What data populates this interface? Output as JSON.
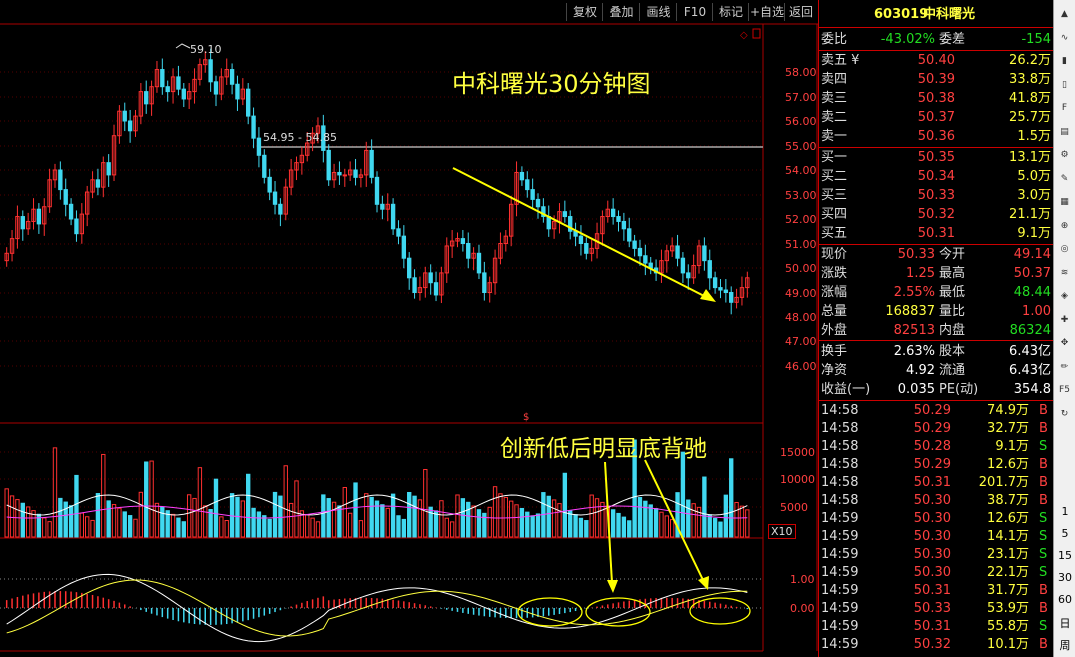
{
  "toolbar": {
    "buttons": [
      "复权",
      "叠加",
      "画线",
      "F10",
      "标记",
      "+自选",
      "返回"
    ]
  },
  "chart": {
    "title": "中科曙光30分钟图",
    "annotation": "创新低后明显底背驰",
    "high_label": "59.10",
    "range_label": "54.95 - 54.85",
    "price_ticks": [
      "58.00",
      "57.00",
      "56.00",
      "55.00",
      "54.00",
      "53.00",
      "52.00",
      "51.00",
      "50.00",
      "49.00",
      "48.00",
      "47.00",
      "46.00"
    ],
    "volume_ticks": [
      "15000",
      "10000",
      "5000"
    ],
    "volume_unit": "X10",
    "macd_ticks": [
      "1.00",
      "0.00"
    ],
    "colors": {
      "up": "#ff3030",
      "down": "#40d8f0",
      "trend": "#ffff00",
      "level": "#aaaaaa"
    }
  },
  "quote": {
    "code": "603019",
    "name": "中科曙光",
    "webi_label": "委比",
    "webi_value": "-43.02%",
    "weicha_label": "委差",
    "weicha_value": "-154",
    "asks": [
      {
        "label": "卖五 ¥",
        "price": "50.40",
        "vol": "26.2万"
      },
      {
        "label": "卖四",
        "price": "50.39",
        "vol": "33.8万"
      },
      {
        "label": "卖三",
        "price": "50.38",
        "vol": "41.8万"
      },
      {
        "label": "卖二",
        "price": "50.37",
        "vol": "25.7万"
      },
      {
        "label": "卖一",
        "price": "50.36",
        "vol": "1.5万"
      }
    ],
    "bids": [
      {
        "label": "买一",
        "price": "50.35",
        "vol": "13.1万"
      },
      {
        "label": "买二",
        "price": "50.34",
        "vol": "5.0万"
      },
      {
        "label": "买三",
        "price": "50.33",
        "vol": "3.0万"
      },
      {
        "label": "买四",
        "price": "50.32",
        "vol": "21.1万"
      },
      {
        "label": "买五",
        "price": "50.31",
        "vol": "9.1万"
      }
    ],
    "stats": [
      {
        "l1": "现价",
        "v1": "50.33",
        "c1": "red",
        "l2": "今开",
        "v2": "49.14",
        "c2": "red"
      },
      {
        "l1": "涨跌",
        "v1": "1.25",
        "c1": "red",
        "l2": "最高",
        "v2": "50.37",
        "c2": "red"
      },
      {
        "l1": "涨幅",
        "v1": "2.55%",
        "c1": "red",
        "l2": "最低",
        "v2": "48.44",
        "c2": "green"
      },
      {
        "l1": "总量",
        "v1": "168837",
        "c1": "yellow",
        "l2": "量比",
        "v2": "1.00",
        "c2": "red"
      },
      {
        "l1": "外盘",
        "v1": "82513",
        "c1": "red",
        "l2": "内盘",
        "v2": "86324",
        "c2": "green"
      }
    ],
    "fundamentals": [
      {
        "l1": "换手",
        "v1": "2.63%",
        "l2": "股本",
        "v2": "6.43亿"
      },
      {
        "l1": "净资",
        "v1": "4.92",
        "l2": "流通",
        "v2": "6.43亿"
      },
      {
        "l1": "收益(一)",
        "v1": "0.035",
        "l2": "PE(动)",
        "v2": "354.8"
      }
    ],
    "trades": [
      {
        "t": "14:58",
        "p": "50.29",
        "v": "74.9万",
        "s": "B"
      },
      {
        "t": "14:58",
        "p": "50.29",
        "v": "32.7万",
        "s": "B"
      },
      {
        "t": "14:58",
        "p": "50.28",
        "v": "9.1万",
        "s": "S"
      },
      {
        "t": "14:58",
        "p": "50.29",
        "v": "12.6万",
        "s": "B"
      },
      {
        "t": "14:58",
        "p": "50.31",
        "v": "201.7万",
        "s": "B"
      },
      {
        "t": "14:58",
        "p": "50.30",
        "v": "38.7万",
        "s": "B"
      },
      {
        "t": "14:59",
        "p": "50.30",
        "v": "12.6万",
        "s": "S"
      },
      {
        "t": "14:59",
        "p": "50.30",
        "v": "14.1万",
        "s": "S"
      },
      {
        "t": "14:59",
        "p": "50.30",
        "v": "23.1万",
        "s": "S"
      },
      {
        "t": "14:59",
        "p": "50.30",
        "v": "22.1万",
        "s": "S"
      },
      {
        "t": "14:59",
        "p": "50.31",
        "v": "31.7万",
        "s": "B"
      },
      {
        "t": "14:59",
        "p": "50.33",
        "v": "53.9万",
        "s": "B"
      },
      {
        "t": "14:59",
        "p": "50.31",
        "v": "55.8万",
        "s": "S"
      },
      {
        "t": "14:59",
        "p": "50.32",
        "v": "10.1万",
        "s": "B"
      }
    ]
  },
  "sidebar": {
    "icons": [
      "arrow-up-icon",
      "line-chart-icon",
      "bar-chart-icon",
      "candle-icon",
      "f10-icon",
      "book-icon",
      "gear-icon",
      "pen-icon",
      "grid-icon",
      "zoom-icon",
      "magnify-icon",
      "wave-icon",
      "compass-icon",
      "cross-icon",
      "move-icon",
      "pencil-icon",
      "f5-icon",
      "refresh-icon"
    ],
    "labels": [
      "1",
      "5",
      "15",
      "30",
      "60",
      "日",
      "周"
    ]
  }
}
